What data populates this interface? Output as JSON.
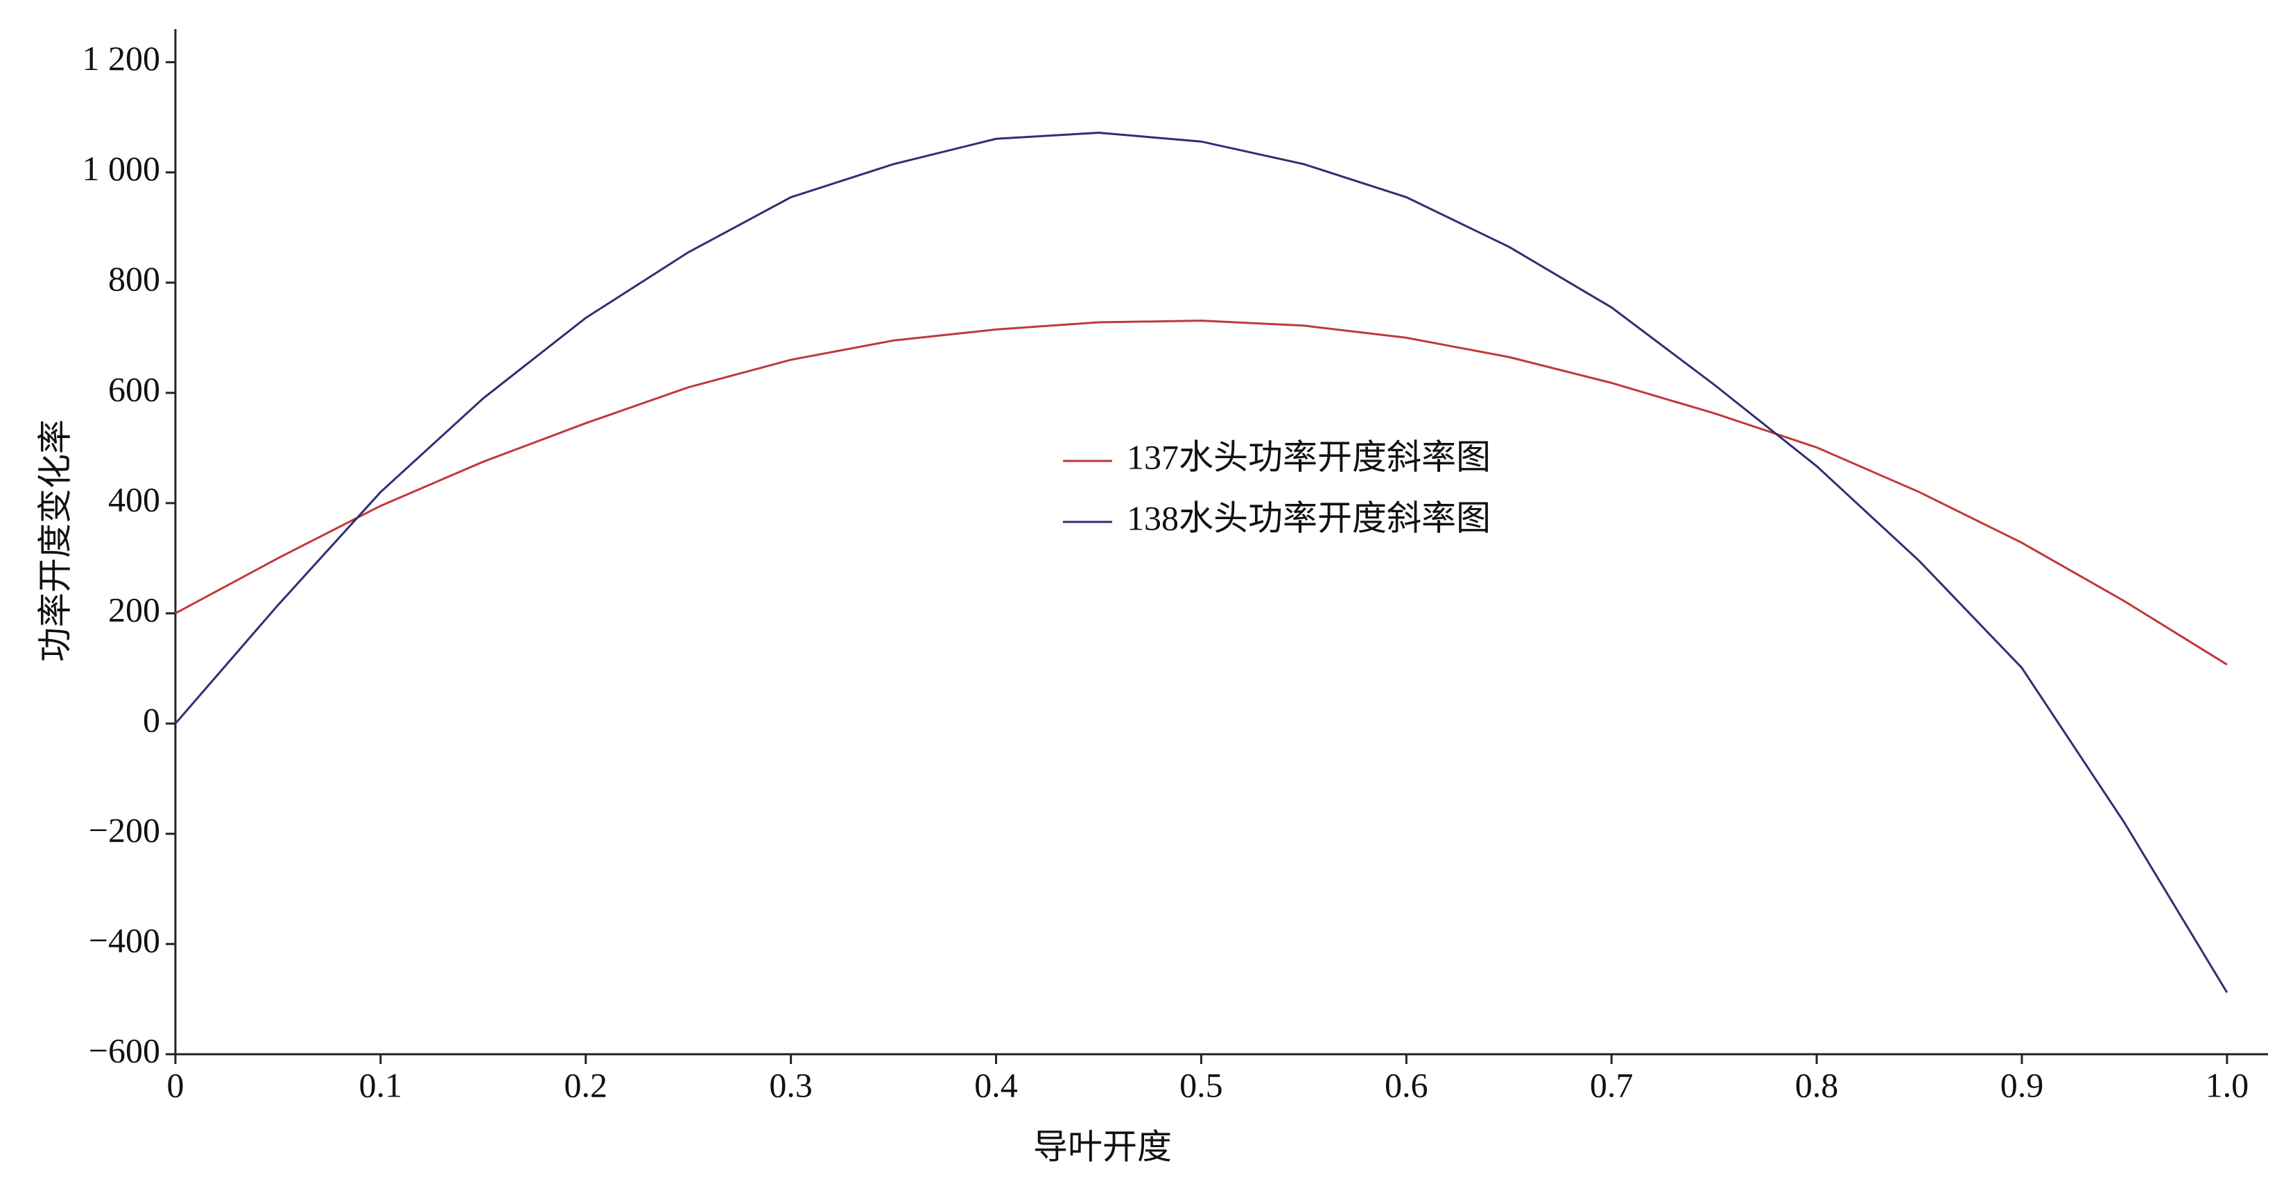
{
  "chart_data": {
    "type": "line",
    "x_label": "导叶开度",
    "y_label": "功率开度变化率",
    "x": [
      0,
      0.05,
      0.1,
      0.15,
      0.2,
      0.25,
      0.3,
      0.35,
      0.4,
      0.45,
      0.5,
      0.55,
      0.6,
      0.65,
      0.7,
      0.75,
      0.8,
      0.85,
      0.9,
      0.95,
      1.0
    ],
    "series": [
      {
        "name": "137水头功率开度斜率图",
        "color": "#c0393b",
        "values": [
          200,
          300,
          395,
          475,
          545,
          610,
          660,
          695,
          715,
          728,
          731,
          722,
          700,
          665,
          618,
          563,
          501,
          420,
          328,
          222,
          107
        ]
      },
      {
        "name": "138水头功率开度斜率图",
        "color": "#2e2f72",
        "values": [
          0,
          215,
          420,
          590,
          736,
          855,
          955,
          1015,
          1061,
          1072,
          1056,
          1015,
          955,
          865,
          755,
          615,
          467,
          295,
          101,
          -180,
          -488
        ]
      }
    ],
    "xlim": [
      0,
      1.02
    ],
    "ylim": [
      -600,
      1260
    ],
    "xticks": [
      0,
      0.1,
      0.2,
      0.3,
      0.4,
      0.5,
      0.6,
      0.7,
      0.8,
      0.9,
      {
        "value": 1,
        "label": "1.0"
      }
    ],
    "yticks": [
      {
        "value": -600,
        "label": "−600"
      },
      {
        "value": -400,
        "label": "−400"
      },
      {
        "value": -200,
        "label": "−200"
      },
      0,
      200,
      400,
      600,
      800,
      {
        "value": 1000,
        "label": "1 000"
      },
      {
        "value": 1200,
        "label": "1 200"
      }
    ],
    "grid": false,
    "legend": "center"
  }
}
